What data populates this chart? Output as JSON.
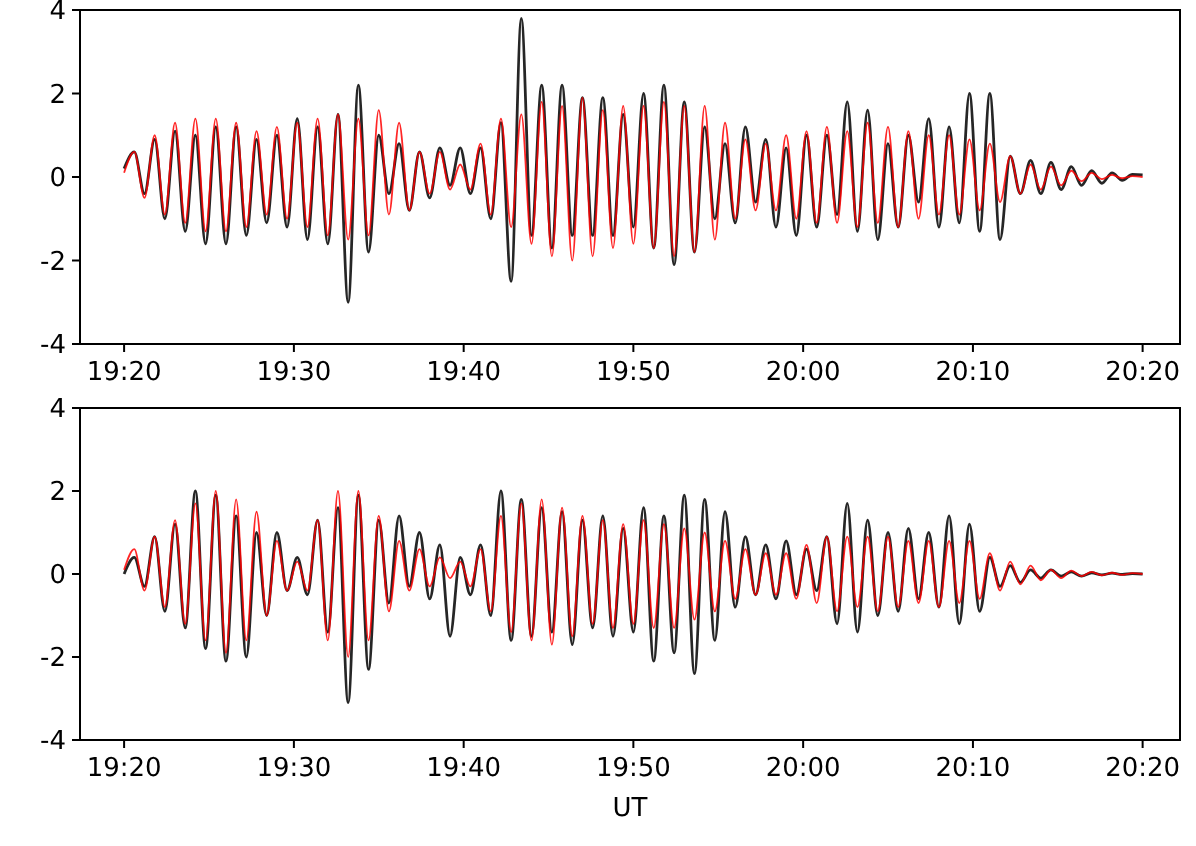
{
  "chart_data": [
    {
      "type": "line",
      "x": [
        19.3333,
        19.3433,
        19.3533,
        19.3633,
        19.3733,
        19.3833,
        19.3933,
        19.4033,
        19.4133,
        19.4233,
        19.4333,
        19.4433,
        19.4533,
        19.4633,
        19.4733,
        19.4833,
        19.4933,
        19.5033,
        19.5133,
        19.5233,
        19.5333,
        19.5433,
        19.5533,
        19.5633,
        19.5733,
        19.5833,
        19.5933,
        19.6033,
        19.6133,
        19.6233,
        19.6333,
        19.6433,
        19.6533,
        19.6633,
        19.6733,
        19.6833,
        19.6933,
        19.7033,
        19.7133,
        19.7233,
        19.7333,
        19.7433,
        19.7533,
        19.7633,
        19.7733,
        19.7833,
        19.7933,
        19.8033,
        19.8133,
        19.8233,
        19.8333,
        19.8433,
        19.8533,
        19.8633,
        19.8733,
        19.8833,
        19.8933,
        19.9033,
        19.9133,
        19.9233,
        19.9333,
        19.9433,
        19.9533,
        19.9633,
        19.9733,
        19.9833,
        19.9933,
        20.0033,
        20.0133,
        20.0233,
        20.0333,
        20.0433,
        20.0533,
        20.0633,
        20.0733,
        20.0833,
        20.0933,
        20.1033,
        20.1133,
        20.1233,
        20.1333,
        20.1433,
        20.1533,
        20.1633,
        20.1733,
        20.1833,
        20.1933,
        20.2033,
        20.2133,
        20.2233,
        20.2333,
        20.2433,
        20.2533,
        20.2633,
        20.2733,
        20.2833,
        20.2933,
        20.3033,
        20.3133,
        20.3233,
        20.3333
      ],
      "xlim": [
        19.29,
        20.37
      ],
      "ylim": [
        -4,
        4
      ],
      "yticks": [
        -4,
        -2,
        0,
        2,
        4
      ],
      "xticks": [
        {
          "value": 19.3333,
          "label": "19:20"
        },
        {
          "value": 19.5,
          "label": "19:30"
        },
        {
          "value": 19.6667,
          "label": "19:40"
        },
        {
          "value": 19.8333,
          "label": "19:50"
        },
        {
          "value": 20,
          "label": "20:00"
        },
        {
          "value": 20.1667,
          "label": "20:10"
        },
        {
          "value": 20.3333,
          "label": "20:20"
        }
      ],
      "series": [
        {
          "color": "#000000",
          "values": [
            0.2,
            0.6,
            -0.4,
            0.9,
            -1.0,
            1.1,
            -1.3,
            1.0,
            -1.6,
            1.2,
            -1.6,
            1.2,
            -1.4,
            0.9,
            -1.1,
            1.0,
            -1.2,
            1.4,
            -1.5,
            1.2,
            -1.6,
            1.5,
            -3.0,
            2.2,
            -1.8,
            1.0,
            -0.4,
            0.8,
            -0.8,
            0.6,
            -0.5,
            0.7,
            -0.2,
            0.7,
            -0.4,
            0.7,
            -1.0,
            1.3,
            -2.5,
            3.8,
            -1.4,
            2.2,
            -1.7,
            2.2,
            -1.4,
            1.9,
            -1.4,
            1.9,
            -1.4,
            1.5,
            -1.2,
            2.0,
            -1.7,
            2.2,
            -2.1,
            1.8,
            -1.8,
            1.2,
            -1.0,
            0.8,
            -1.1,
            1.2,
            -0.6,
            0.9,
            -1.2,
            0.7,
            -1.4,
            1.0,
            -1.2,
            1.0,
            -0.9,
            1.8,
            -1.3,
            1.6,
            -1.5,
            0.8,
            -1.2,
            1.0,
            -0.6,
            1.4,
            -1.2,
            1.2,
            -1.1,
            2.0,
            -1.3,
            2.0,
            -1.5,
            0.5,
            -0.4,
            0.4,
            -0.4,
            0.35,
            -0.3,
            0.25,
            -0.2,
            0.15,
            -0.15,
            0.1,
            -0.08,
            0.06,
            0.05
          ]
        },
        {
          "color": "#ff0000",
          "values": [
            0.1,
            0.6,
            -0.5,
            1.0,
            -0.9,
            1.3,
            -1.1,
            1.4,
            -1.3,
            1.4,
            -1.3,
            1.3,
            -1.2,
            1.1,
            -0.9,
            1.2,
            -1.0,
            1.3,
            -1.2,
            1.4,
            -1.4,
            1.5,
            -1.5,
            1.4,
            -1.4,
            1.6,
            -0.9,
            1.3,
            -0.8,
            0.6,
            -0.4,
            0.6,
            -0.3,
            0.3,
            -0.3,
            0.8,
            -0.9,
            1.4,
            -1.2,
            1.5,
            -1.6,
            1.8,
            -1.9,
            1.7,
            -2.0,
            1.9,
            -1.9,
            1.6,
            -1.7,
            1.7,
            -1.6,
            1.7,
            -1.7,
            1.8,
            -1.9,
            1.7,
            -1.8,
            1.7,
            -1.5,
            1.3,
            -1.0,
            0.9,
            -0.8,
            0.8,
            -0.8,
            1.0,
            -1.0,
            1.1,
            -1.1,
            1.2,
            -1.1,
            1.1,
            -1.2,
            1.3,
            -1.1,
            1.2,
            -1.2,
            1.1,
            -1.0,
            1.0,
            -0.9,
            1.0,
            -0.9,
            0.9,
            -0.8,
            0.8,
            -0.6,
            0.5,
            -0.4,
            0.3,
            -0.3,
            0.25,
            -0.2,
            0.15,
            -0.1,
            0.1,
            -0.05,
            0.05,
            -0.03,
            0.02,
            0
          ]
        }
      ]
    },
    {
      "type": "line",
      "xlabel": "UT",
      "x": [
        19.3333,
        19.3433,
        19.3533,
        19.3633,
        19.3733,
        19.3833,
        19.3933,
        19.4033,
        19.4133,
        19.4233,
        19.4333,
        19.4433,
        19.4533,
        19.4633,
        19.4733,
        19.4833,
        19.4933,
        19.5033,
        19.5133,
        19.5233,
        19.5333,
        19.5433,
        19.5533,
        19.5633,
        19.5733,
        19.5833,
        19.5933,
        19.6033,
        19.6133,
        19.6233,
        19.6333,
        19.6433,
        19.6533,
        19.6633,
        19.6733,
        19.6833,
        19.6933,
        19.7033,
        19.7133,
        19.7233,
        19.7333,
        19.7433,
        19.7533,
        19.7633,
        19.7733,
        19.7833,
        19.7933,
        19.8033,
        19.8133,
        19.8233,
        19.8333,
        19.8433,
        19.8533,
        19.8633,
        19.8733,
        19.8833,
        19.8933,
        19.9033,
        19.9133,
        19.9233,
        19.9333,
        19.9433,
        19.9533,
        19.9633,
        19.9733,
        19.9833,
        19.9933,
        20.0033,
        20.0133,
        20.0233,
        20.0333,
        20.0433,
        20.0533,
        20.0633,
        20.0733,
        20.0833,
        20.0933,
        20.1033,
        20.1133,
        20.1233,
        20.1333,
        20.1433,
        20.1533,
        20.1633,
        20.1733,
        20.1833,
        20.1933,
        20.2033,
        20.2133,
        20.2233,
        20.2333,
        20.2433,
        20.2533,
        20.2633,
        20.2733,
        20.2833,
        20.2933,
        20.3033,
        20.3133,
        20.3233,
        20.3333
      ],
      "xlim": [
        19.29,
        20.37
      ],
      "ylim": [
        -4,
        4
      ],
      "yticks": [
        -4,
        -2,
        0,
        2,
        4
      ],
      "xticks": [
        {
          "value": 19.3333,
          "label": "19:20"
        },
        {
          "value": 19.5,
          "label": "19:30"
        },
        {
          "value": 19.6667,
          "label": "19:40"
        },
        {
          "value": 19.8333,
          "label": "19:50"
        },
        {
          "value": 20,
          "label": "20:00"
        },
        {
          "value": 20.1667,
          "label": "20:10"
        },
        {
          "value": 20.3333,
          "label": "20:20"
        }
      ],
      "series": [
        {
          "color": "#000000",
          "values": [
            0.0,
            0.4,
            -0.3,
            0.9,
            -0.9,
            1.2,
            -1.3,
            2.0,
            -1.8,
            1.9,
            -2.1,
            1.4,
            -2.0,
            1.0,
            -1.0,
            1.0,
            -0.4,
            0.4,
            -0.5,
            1.3,
            -1.4,
            1.6,
            -3.1,
            1.9,
            -2.3,
            1.3,
            -0.7,
            1.4,
            -0.3,
            1.0,
            -0.6,
            0.7,
            -1.5,
            0.4,
            -0.5,
            0.7,
            -1.0,
            2.0,
            -1.6,
            1.8,
            -1.5,
            1.6,
            -1.4,
            1.5,
            -1.7,
            1.3,
            -1.3,
            1.4,
            -1.5,
            1.1,
            -1.4,
            1.6,
            -2.1,
            1.4,
            -1.9,
            1.9,
            -2.4,
            1.8,
            -1.6,
            1.5,
            -0.8,
            0.9,
            -0.5,
            0.7,
            -0.6,
            0.8,
            -0.5,
            0.6,
            -0.4,
            0.9,
            -1.2,
            1.7,
            -1.4,
            1.3,
            -1.0,
            1.0,
            -0.9,
            1.1,
            -0.6,
            1.0,
            -0.8,
            1.4,
            -1.2,
            1.2,
            -0.9,
            0.4,
            -0.3,
            0.2,
            -0.2,
            0.1,
            -0.1,
            0.1,
            -0.05,
            0.05,
            -0.05,
            0.03,
            -0.02,
            0.02,
            -0.01,
            0.01,
            0
          ]
        },
        {
          "color": "#ff0000",
          "values": [
            0.1,
            0.6,
            -0.4,
            0.9,
            -0.8,
            1.3,
            -1.2,
            1.7,
            -1.6,
            2.0,
            -1.9,
            1.8,
            -1.6,
            1.5,
            -1.0,
            0.8,
            -0.4,
            0.3,
            -0.4,
            1.3,
            -1.6,
            2.0,
            -2.0,
            2.0,
            -1.6,
            1.4,
            -0.9,
            0.8,
            -0.4,
            0.6,
            -0.3,
            0.4,
            -0.1,
            0.3,
            -0.3,
            0.6,
            -0.9,
            1.4,
            -1.4,
            1.7,
            -1.6,
            1.8,
            -1.7,
            1.6,
            -1.5,
            1.4,
            -1.2,
            1.3,
            -1.3,
            1.2,
            -1.2,
            1.3,
            -1.3,
            1.2,
            -1.3,
            1.1,
            -1.1,
            1.0,
            -0.9,
            0.8,
            -0.6,
            0.6,
            -0.5,
            0.5,
            -0.5,
            0.5,
            -0.6,
            0.7,
            -0.7,
            0.9,
            -0.9,
            0.9,
            -0.8,
            0.9,
            -0.9,
            0.9,
            -0.8,
            0.8,
            -0.7,
            0.8,
            -0.8,
            0.8,
            -0.7,
            0.8,
            -0.6,
            0.5,
            -0.4,
            0.3,
            -0.25,
            0.2,
            -0.15,
            0.1,
            -0.1,
            0.08,
            -0.05,
            0.05,
            -0.03,
            0.03,
            -0.02,
            0.02,
            0
          ]
        }
      ]
    }
  ]
}
